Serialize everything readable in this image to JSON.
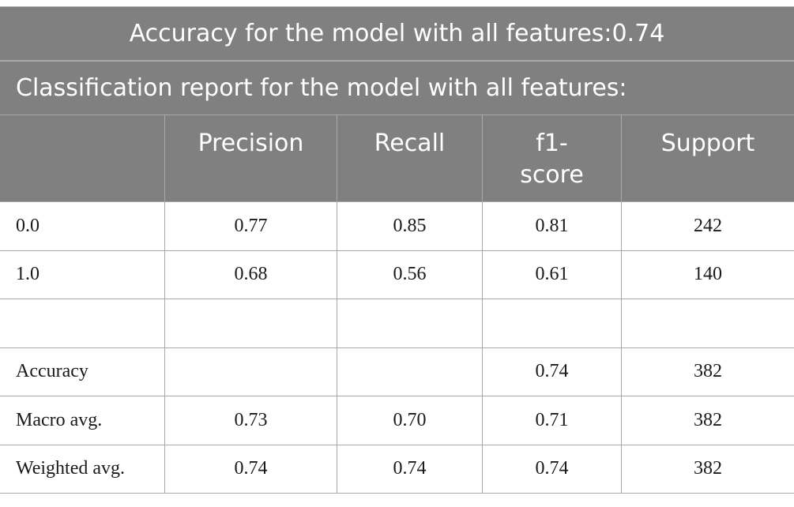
{
  "title": "Accuracy for the model with all features:0.74",
  "subtitle": "Classification report for the model with all features:",
  "columns": [
    "",
    "Precision",
    "Recall",
    "f1-\nscore",
    "Support"
  ],
  "column_header_f1_line1": "f1-",
  "column_header_f1_line2": "score",
  "rows": [
    {
      "label": "0.0",
      "precision": "0.77",
      "recall": "0.85",
      "f1": "0.81",
      "support": "242"
    },
    {
      "label": "1.0",
      "precision": "0.68",
      "recall": "0.56",
      "f1": "0.61",
      "support": "140"
    },
    {
      "label": "",
      "precision": "",
      "recall": "",
      "f1": "",
      "support": ""
    },
    {
      "label": "Accuracy",
      "precision": "",
      "recall": "",
      "f1": "0.74",
      "support": "382"
    },
    {
      "label": "Macro avg.",
      "precision": "0.73",
      "recall": "0.70",
      "f1": "0.71",
      "support": "382"
    },
    {
      "label": "Weighted avg.",
      "precision": "0.74",
      "recall": "0.74",
      "f1": "0.74",
      "support": "382"
    }
  ],
  "colors": {
    "header_bg": "#808080",
    "header_text": "#ffffff",
    "border": "#a8a8a8",
    "body_text": "#1a1a1a"
  }
}
